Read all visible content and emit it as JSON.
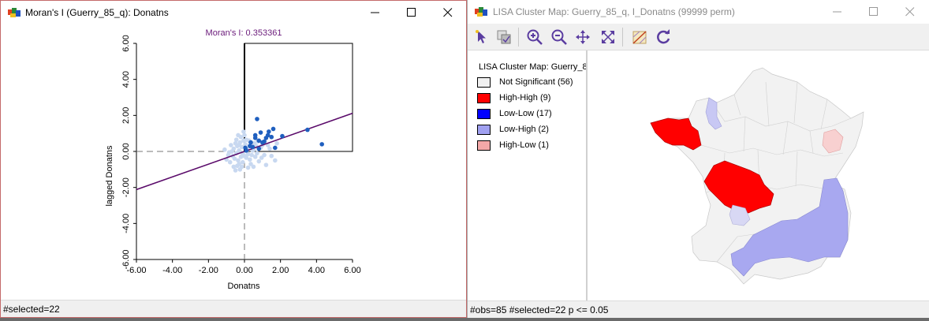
{
  "moran_window": {
    "title": "Moran's I (Guerry_85_q): Donatns",
    "status": "#selected=22"
  },
  "lisa_window": {
    "title": "LISA Cluster Map: Guerry_85_q, I_Donatns (99999 perm)",
    "status": "#obs=85 #selected=22  p <= 0.05",
    "toolbar": [
      "select-pointer-icon",
      "copy-selection-icon",
      "zoom-in-icon",
      "zoom-out-icon",
      "pan-icon",
      "full-extent-icon",
      "selection-toggle-icon",
      "refresh-icon"
    ],
    "legend": {
      "title": "LISA Cluster Map: Guerry_8",
      "items": [
        {
          "label": "Not Significant (56)",
          "color": "#f0f0f0"
        },
        {
          "label": "High-High (9)",
          "color": "#ff0000"
        },
        {
          "label": "Low-Low (17)",
          "color": "#0000ff"
        },
        {
          "label": "Low-High (2)",
          "color": "#a0a0f0"
        },
        {
          "label": "High-Low (1)",
          "color": "#f4a8a8"
        }
      ]
    }
  },
  "chart_data": {
    "type": "scatter",
    "title": "Moran's I: 0.353361",
    "xlabel": "Donatns",
    "ylabel": "lagged Donatns",
    "xlim": [
      -6,
      6
    ],
    "ylim": [
      -6,
      6
    ],
    "xticks": [
      "-6.00",
      "-4.00",
      "-2.00",
      "0.00",
      "2.00",
      "4.00",
      "6.00"
    ],
    "yticks": [
      "-6.00",
      "-4.00",
      "-2.00",
      "0.00",
      "2.00",
      "4.00",
      "6.00"
    ],
    "slope": 0.353361,
    "colors": {
      "selected": "#1f5fbf",
      "unselected": "#c8d8f0",
      "line": "#5a0a6a",
      "title": "#6a1a7a"
    },
    "selected_points": [
      [
        0.05,
        0.2
      ],
      [
        0.1,
        0.05
      ],
      [
        0.3,
        0.3
      ],
      [
        0.35,
        0.5
      ],
      [
        0.6,
        0.9
      ],
      [
        0.6,
        0.75
      ],
      [
        0.7,
        1.8
      ],
      [
        0.8,
        0.6
      ],
      [
        0.8,
        0.15
      ],
      [
        0.9,
        1.05
      ],
      [
        1.0,
        0.5
      ],
      [
        1.1,
        0.55
      ],
      [
        1.3,
        0.9
      ],
      [
        1.35,
        1.1
      ],
      [
        1.5,
        0.8
      ],
      [
        1.6,
        1.25
      ],
      [
        1.7,
        0.2
      ],
      [
        2.1,
        0.85
      ],
      [
        3.5,
        1.2
      ],
      [
        4.3,
        0.4
      ],
      [
        0.45,
        0.25
      ],
      [
        1.2,
        0.75
      ]
    ],
    "unselected_points": [
      [
        -0.6,
        0.15
      ],
      [
        -0.5,
        0.45
      ],
      [
        -0.45,
        -0.1
      ],
      [
        -0.4,
        0.3
      ],
      [
        -0.35,
        -0.5
      ],
      [
        -0.3,
        -0.7
      ],
      [
        -0.3,
        0.05
      ],
      [
        -0.25,
        0.5
      ],
      [
        -0.2,
        -0.3
      ],
      [
        -0.15,
        0.25
      ],
      [
        -0.1,
        -0.1
      ],
      [
        -0.1,
        -0.6
      ],
      [
        -0.05,
        0.6
      ],
      [
        0.0,
        -0.25
      ],
      [
        -0.55,
        -0.4
      ],
      [
        -0.7,
        0.0
      ],
      [
        -0.65,
        -0.25
      ],
      [
        -0.2,
        0.8
      ],
      [
        -0.4,
        -0.8
      ],
      [
        -0.8,
        -0.6
      ],
      [
        0.1,
        -0.35
      ],
      [
        0.15,
        0.1
      ],
      [
        0.2,
        -0.15
      ],
      [
        0.3,
        -0.45
      ],
      [
        0.4,
        -0.2
      ],
      [
        0.5,
        0.1
      ],
      [
        0.6,
        -0.3
      ],
      [
        0.7,
        -0.1
      ],
      [
        0.9,
        0.2
      ],
      [
        1.1,
        -0.2
      ],
      [
        1.4,
        0.15
      ],
      [
        1.5,
        -0.25
      ],
      [
        1.7,
        -0.5
      ],
      [
        -0.45,
        0.65
      ],
      [
        -0.35,
        0.9
      ],
      [
        -0.15,
        -0.85
      ],
      [
        0.05,
        0.4
      ],
      [
        0.25,
        0.6
      ],
      [
        0.55,
        0.45
      ],
      [
        -0.6,
        -0.85
      ],
      [
        -0.9,
        -0.2
      ],
      [
        -1.0,
        -0.45
      ],
      [
        0.35,
        -0.7
      ],
      [
        0.8,
        -0.55
      ],
      [
        1.2,
        -0.75
      ],
      [
        -0.25,
        -1.0
      ],
      [
        0.0,
        0.9
      ],
      [
        0.45,
        0.05
      ],
      [
        -0.75,
        0.35
      ],
      [
        0.65,
        0.3
      ],
      [
        1.0,
        0.35
      ],
      [
        -0.05,
        1.1
      ],
      [
        0.2,
        -0.9
      ],
      [
        1.8,
        0.45
      ],
      [
        -0.5,
        -1.05
      ],
      [
        0.75,
        0.55
      ],
      [
        -1.1,
        0.1
      ],
      [
        0.1,
        0.65
      ],
      [
        1.3,
        0.35
      ],
      [
        -0.3,
        0.35
      ],
      [
        0.5,
        -0.85
      ],
      [
        0.95,
        -0.35
      ],
      [
        -0.85,
        -0.05
      ]
    ]
  }
}
